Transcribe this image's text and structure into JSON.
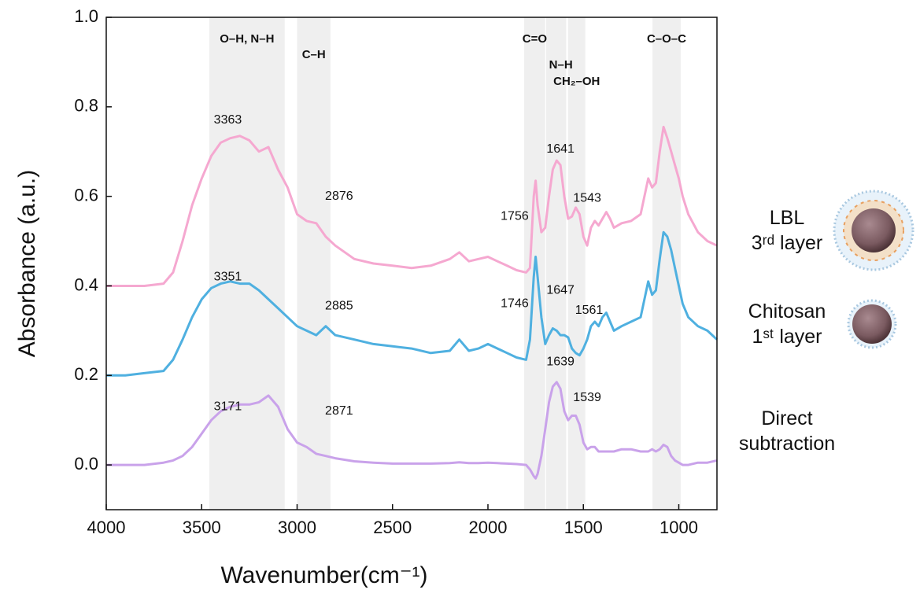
{
  "chart_data": {
    "type": "line",
    "xlabel": "Wavenumber(cm⁻¹)",
    "ylabel": "Absorbance (a.u.)",
    "xlim": [
      4000,
      800
    ],
    "ylim": [
      -0.1,
      1.0
    ],
    "xticks": [
      4000,
      3500,
      3000,
      2500,
      2000,
      1500,
      1000
    ],
    "yticks": [
      {
        "value": 0,
        "label": "0.0"
      },
      {
        "value": 0.2,
        "label": "0.2"
      },
      {
        "value": 0.4,
        "label": "0.4"
      },
      {
        "value": 0.6,
        "label": "0.6"
      },
      {
        "value": 0.8,
        "label": "0.8"
      },
      {
        "value": 1,
        "label": "1.0"
      }
    ],
    "bands": [
      {
        "label": "O–H, N–H",
        "range": [
          3460,
          3065
        ]
      },
      {
        "label": "C–H",
        "range": [
          3000,
          2825
        ]
      },
      {
        "label": "C=O",
        "range": [
          1810,
          1700
        ]
      },
      {
        "label": "N–H",
        "range": [
          1695,
          1590
        ]
      },
      {
        "label": "CH₂–OH",
        "range": [
          1580,
          1490
        ]
      },
      {
        "label": "C–O–C",
        "range": [
          1138,
          990
        ]
      }
    ],
    "x": [
      4000,
      3900,
      3800,
      3700,
      3650,
      3600,
      3550,
      3500,
      3450,
      3400,
      3350,
      3300,
      3250,
      3200,
      3150,
      3100,
      3050,
      3000,
      2950,
      2900,
      2850,
      2800,
      2700,
      2600,
      2500,
      2400,
      2300,
      2200,
      2150,
      2100,
      2050,
      2000,
      1950,
      1900,
      1850,
      1800,
      1780,
      1760,
      1750,
      1740,
      1720,
      1700,
      1680,
      1660,
      1640,
      1620,
      1600,
      1580,
      1560,
      1540,
      1520,
      1500,
      1480,
      1460,
      1440,
      1420,
      1400,
      1380,
      1360,
      1340,
      1300,
      1250,
      1200,
      1160,
      1140,
      1120,
      1100,
      1080,
      1060,
      1040,
      1020,
      1000,
      980,
      950,
      900,
      850,
      800
    ],
    "series": [
      {
        "name": "LBL\n3ʳᵈ layer",
        "color": "#f5a8d0",
        "values": [
          0.4,
          0.4,
          0.4,
          0.405,
          0.43,
          0.5,
          0.58,
          0.64,
          0.69,
          0.72,
          0.73,
          0.735,
          0.725,
          0.7,
          0.71,
          0.66,
          0.62,
          0.56,
          0.545,
          0.54,
          0.51,
          0.49,
          0.46,
          0.45,
          0.445,
          0.44,
          0.445,
          0.46,
          0.475,
          0.455,
          0.46,
          0.465,
          0.455,
          0.445,
          0.435,
          0.43,
          0.44,
          0.6,
          0.635,
          0.58,
          0.52,
          0.53,
          0.6,
          0.66,
          0.68,
          0.67,
          0.6,
          0.55,
          0.555,
          0.575,
          0.56,
          0.51,
          0.49,
          0.53,
          0.545,
          0.535,
          0.55,
          0.565,
          0.55,
          0.53,
          0.54,
          0.545,
          0.56,
          0.64,
          0.62,
          0.63,
          0.7,
          0.755,
          0.73,
          0.7,
          0.67,
          0.64,
          0.6,
          0.56,
          0.52,
          0.5,
          0.49
        ],
        "annotations": [
          "3363",
          "2876",
          "1756",
          "1641",
          "1543"
        ]
      },
      {
        "name": "Chitosan\n1ˢᵗ layer",
        "color": "#4fb0e0",
        "values": [
          0.2,
          0.2,
          0.205,
          0.21,
          0.235,
          0.28,
          0.33,
          0.37,
          0.395,
          0.405,
          0.41,
          0.405,
          0.405,
          0.39,
          0.37,
          0.35,
          0.33,
          0.31,
          0.3,
          0.29,
          0.31,
          0.29,
          0.28,
          0.27,
          0.265,
          0.26,
          0.25,
          0.255,
          0.28,
          0.255,
          0.26,
          0.27,
          0.26,
          0.25,
          0.24,
          0.235,
          0.28,
          0.42,
          0.465,
          0.42,
          0.33,
          0.27,
          0.29,
          0.305,
          0.3,
          0.29,
          0.29,
          0.285,
          0.26,
          0.25,
          0.245,
          0.26,
          0.28,
          0.31,
          0.32,
          0.31,
          0.33,
          0.34,
          0.32,
          0.3,
          0.31,
          0.32,
          0.33,
          0.41,
          0.38,
          0.39,
          0.46,
          0.52,
          0.51,
          0.48,
          0.44,
          0.4,
          0.36,
          0.33,
          0.31,
          0.3,
          0.28
        ],
        "annotations": [
          "3351",
          "2885",
          "1746",
          "1647",
          "1561"
        ]
      },
      {
        "name": "Direct\nsubtraction",
        "color": "#c9a2ea",
        "values": [
          0.0,
          0.0,
          0.0,
          0.005,
          0.01,
          0.02,
          0.04,
          0.07,
          0.1,
          0.12,
          0.13,
          0.135,
          0.135,
          0.14,
          0.155,
          0.13,
          0.08,
          0.05,
          0.04,
          0.025,
          0.02,
          0.015,
          0.008,
          0.005,
          0.003,
          0.003,
          0.003,
          0.004,
          0.006,
          0.004,
          0.004,
          0.005,
          0.004,
          0.003,
          0.002,
          0.0,
          -0.01,
          -0.025,
          -0.03,
          -0.02,
          0.02,
          0.08,
          0.14,
          0.175,
          0.185,
          0.17,
          0.12,
          0.1,
          0.11,
          0.11,
          0.09,
          0.05,
          0.035,
          0.04,
          0.04,
          0.03,
          0.03,
          0.03,
          0.03,
          0.03,
          0.035,
          0.035,
          0.03,
          0.03,
          0.035,
          0.03,
          0.035,
          0.045,
          0.04,
          0.02,
          0.01,
          0.005,
          0.0,
          0.0,
          0.005,
          0.005,
          0.01
        ],
        "annotations": [
          "3171",
          "2871",
          "1639",
          "1539"
        ]
      }
    ]
  }
}
